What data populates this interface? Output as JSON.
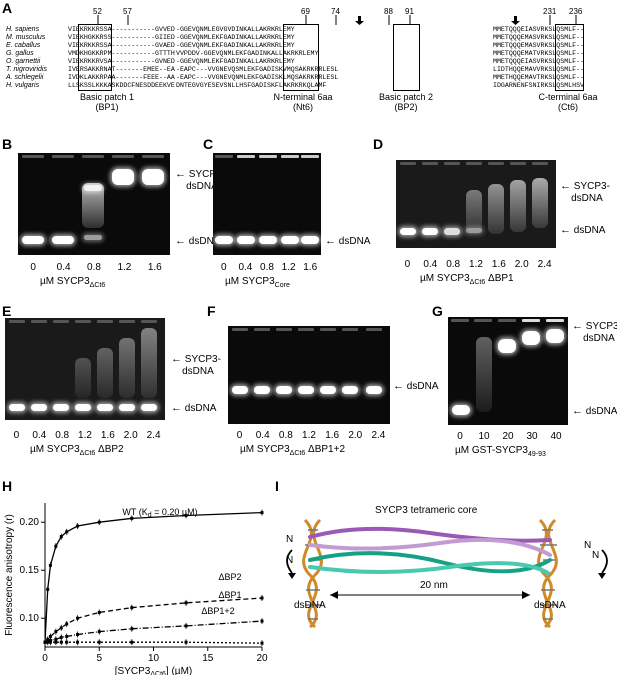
{
  "panel_A": {
    "label": "A",
    "species": [
      "H. sapiens",
      "M. musculus",
      "E. caballus",
      "G. gallus",
      "O. garnettii",
      "T. nigroviridis",
      "A. schlegelii",
      "H. vulgaris"
    ],
    "block1": [
      "VIEKRKKRSSA-----------GVVED",
      "VIEKHGKKRSS-----------GIIED",
      "VIEKRKKRSSA-----------GVAED",
      "VMDKHGKKRPM-----------GTTTH",
      "VIEKRKKRVSA-----------GVNED",
      "IVERSAKKRNAT-------EMEE--EA",
      "IVDKLAKKRPAA-------FEEE--AA",
      "LLSKSSLKKKASKDDCFNESDDEEKVE"
    ],
    "block2": [
      "-GGEVQNMLEGVGVDINKALLAKRKRLEMY",
      "-GGEVQNMLEKFGADINKALLAKRKRLEMY",
      "-GGEVQNMLEKFGADINKALLAKRKRLEMY",
      "VVPDDV-GGEVQNMLEKFGADINKALLAKRKRLEMY",
      "-GGEVQNMLEKFGADINKALLAKRKRLEMY",
      "-EAPC---VVGNEVQSMLEKFGADISKVMQSAKRKRRLESL",
      "-EAPC---VVGNEVQNMLEKFGADISKLMQSAKRKRRLESL",
      "DNTEGVGYESEVSNLLHSFGADISKFLAKRKRKQLAMF"
    ],
    "block3": [
      "MMETQQQEIASVRKSLQSMLF--",
      "MMETQQQEMASVRKSLQSMLF--",
      "MMETQQQEMASVRKSLQSMLF--",
      "MMETQQQEMATVRKSLQSMLF--",
      "MMETQQQEIASVRKSLQSMLF--",
      "LIDTHQQEMAVVRKSLQSMLF--",
      "MMETHQQEMAVTRKSLQSMLF--",
      "IDGARNENFSNIRKSLQSMLHSV"
    ],
    "positions": [
      "52",
      "57",
      "69",
      "74",
      "88",
      "91",
      "231",
      "236"
    ],
    "regions": [
      {
        "name": "Basic patch 1",
        "abbr": "(BP1)"
      },
      {
        "name": "N-terminal 6aa",
        "abbr": "(Nt6)"
      },
      {
        "name": "Basic patch 2",
        "abbr": "(BP2)"
      },
      {
        "name": "C-terminal 6aa",
        "abbr": "(Ct6)"
      }
    ]
  },
  "panel_B": {
    "label": "B",
    "lanes": [
      "0",
      "0.4",
      "0.8",
      "1.2",
      "1.6"
    ],
    "axis_prefix": "µM SYCP3",
    "axis_sub": "ΔCt6",
    "axis_suffix": "",
    "upper": [
      "SYCP3-",
      "dsDNA"
    ],
    "lower": "dsDNA"
  },
  "panel_C": {
    "label": "C",
    "lanes": [
      "0",
      "0.4",
      "0.8",
      "1.2",
      "1.6"
    ],
    "axis_prefix": "µM SYCP3",
    "axis_sub": "Core",
    "axis_suffix": "",
    "lower": "dsDNA"
  },
  "panel_D": {
    "label": "D",
    "lanes": [
      "0",
      "0.4",
      "0.8",
      "1.2",
      "1.6",
      "2.0",
      "2.4"
    ],
    "axis_prefix": "µM SYCP3",
    "axis_sub": "ΔCt6",
    "axis_suffix": " ΔBP1",
    "upper": [
      "SYCP3-",
      "dsDNA"
    ],
    "lower": "dsDNA"
  },
  "panel_E": {
    "label": "E",
    "lanes": [
      "0",
      "0.4",
      "0.8",
      "1.2",
      "1.6",
      "2.0",
      "2.4"
    ],
    "axis_prefix": "µM SYCP3",
    "axis_sub": "ΔCt6",
    "axis_suffix": " ΔBP2",
    "upper": [
      "SYCP3-",
      "dsDNA"
    ],
    "lower": "dsDNA"
  },
  "panel_F": {
    "label": "F",
    "lanes": [
      "0",
      "0.4",
      "0.8",
      "1.2",
      "1.6",
      "2.0",
      "2.4"
    ],
    "axis_prefix": "µM SYCP3",
    "axis_sub": "ΔCt6",
    "axis_suffix": " ΔBP1+2",
    "lower": "dsDNA"
  },
  "panel_G": {
    "label": "G",
    "lanes": [
      "0",
      "10",
      "20",
      "30",
      "40"
    ],
    "axis_prefix": "µM GST-SYCP3",
    "axis_sub": "49-93",
    "axis_suffix": "",
    "upper": [
      "SYCP3-",
      "dsDNA"
    ],
    "lower": "dsDNA"
  },
  "panel_H": {
    "label": "H",
    "ylabel": "Fluorescence anisotropy (r)",
    "xlabel_prefix": "[SYCP3",
    "xlabel_sub": "ΔCt6",
    "xlabel_suffix": "] (µM)"
  },
  "panel_I": {
    "label": "I",
    "title": "SYCP3 tetrameric core",
    "distance": "20 nm",
    "left_label": "dsDNA",
    "right_label": "dsDNA",
    "end_label": "N"
  },
  "chart_data": {
    "type": "line",
    "x": [
      0,
      0.25,
      0.5,
      1,
      1.5,
      2,
      3,
      5,
      8,
      13,
      20
    ],
    "xlim": [
      0,
      20
    ],
    "ylim": [
      0.07,
      0.22
    ],
    "xticks": [
      "0",
      "5",
      "10",
      "15",
      "20"
    ],
    "yticks": [
      "0.10",
      "0.15",
      "0.20"
    ],
    "series": [
      {
        "name": "WT (K",
        "name_sub": "d",
        "name_tail": " = 0.20 µM)",
        "values": [
          0.075,
          0.13,
          0.155,
          0.175,
          0.185,
          0.19,
          0.196,
          0.2,
          0.204,
          0.207,
          0.21
        ]
      },
      {
        "name": "ΔBP2",
        "values": [
          0.075,
          0.078,
          0.081,
          0.086,
          0.09,
          0.094,
          0.1,
          0.106,
          0.111,
          0.116,
          0.121
        ]
      },
      {
        "name": "ΔBP1",
        "values": [
          0.075,
          0.076,
          0.077,
          0.078,
          0.08,
          0.081,
          0.083,
          0.086,
          0.089,
          0.092,
          0.097
        ]
      },
      {
        "name": "ΔBP1+2",
        "values": [
          0.075,
          0.075,
          0.075,
          0.075,
          0.075,
          0.075,
          0.075,
          0.075,
          0.075,
          0.075,
          0.074
        ]
      }
    ]
  }
}
